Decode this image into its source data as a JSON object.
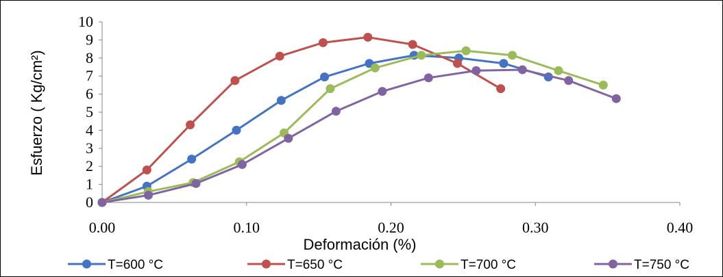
{
  "chart_data": {
    "type": "line",
    "xlabel": "Deformación (%)",
    "ylabel": "Esfuerzo ( Kg/cm²)",
    "xlim": [
      0,
      0.4
    ],
    "ylim": [
      0,
      10
    ],
    "x_ticks": [
      "0.00",
      "0.10",
      "0.20",
      "0.30",
      "0.40"
    ],
    "y_ticks": [
      "0",
      "1",
      "2",
      "3",
      "4",
      "5",
      "6",
      "7",
      "8",
      "9",
      "10"
    ],
    "grid": false,
    "legend_position": "bottom",
    "series": [
      {
        "name": "T=600 °C",
        "color": "#4472C4",
        "x": [
          0.0,
          0.031,
          0.062,
          0.093,
          0.124,
          0.154,
          0.185,
          0.216,
          0.247,
          0.278,
          0.309
        ],
        "y": [
          0.0,
          0.9,
          2.4,
          4.0,
          5.65,
          6.95,
          7.7,
          8.15,
          8.0,
          7.7,
          6.95
        ]
      },
      {
        "name": "T=650 °C",
        "color": "#C0504D",
        "x": [
          0.0,
          0.031,
          0.061,
          0.092,
          0.123,
          0.153,
          0.184,
          0.215,
          0.246,
          0.276
        ],
        "y": [
          0.0,
          1.8,
          4.3,
          6.75,
          8.1,
          8.85,
          9.15,
          8.75,
          7.7,
          6.3
        ]
      },
      {
        "name": "T=700 °C",
        "color": "#9BBB59",
        "x": [
          0.0,
          0.032,
          0.063,
          0.095,
          0.126,
          0.158,
          0.189,
          0.221,
          0.252,
          0.284,
          0.316,
          0.347
        ],
        "y": [
          0.0,
          0.6,
          1.1,
          2.25,
          3.85,
          6.3,
          7.45,
          8.15,
          8.4,
          8.15,
          7.3,
          6.5
        ]
      },
      {
        "name": "T=750 °C",
        "color": "#8064A2",
        "x": [
          0.0,
          0.032,
          0.065,
          0.097,
          0.129,
          0.162,
          0.194,
          0.226,
          0.259,
          0.291,
          0.323,
          0.356
        ],
        "y": [
          0.0,
          0.4,
          1.05,
          2.1,
          3.55,
          5.05,
          6.15,
          6.9,
          7.3,
          7.35,
          6.75,
          5.75
        ]
      }
    ]
  }
}
